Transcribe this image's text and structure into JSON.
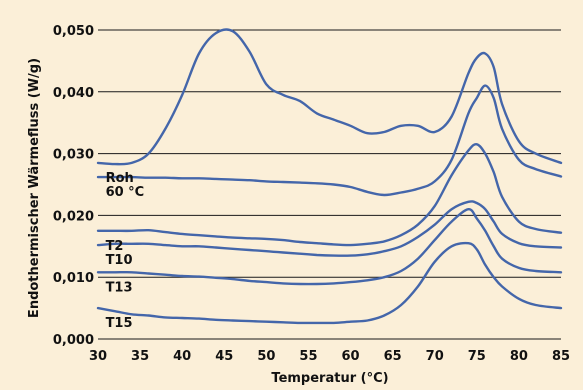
{
  "chart_data": {
    "type": "line",
    "xlabel": "Temperatur (°C)",
    "ylabel": "Endothermischer Wärmefluss (W/g)",
    "xlim": [
      30,
      85
    ],
    "ylim": [
      0.0,
      0.05
    ],
    "x_ticks": [
      "30",
      "35",
      "40",
      "45",
      "50",
      "55",
      "60",
      "65",
      "70",
      "75",
      "80",
      "85"
    ],
    "y_ticks": [
      "0,000",
      "0,010",
      "0,020",
      "0,030",
      "0,040",
      "0,050"
    ],
    "grid": "horizontal",
    "x": [
      30,
      32,
      34,
      36,
      38,
      40,
      42,
      44,
      46,
      48,
      50,
      52,
      54,
      56,
      58,
      60,
      62,
      64,
      66,
      68,
      70,
      72,
      74,
      75,
      76,
      77,
      78,
      80,
      82,
      85
    ],
    "series": [
      {
        "name": "Roh",
        "values": [
          0.0285,
          0.0283,
          0.0285,
          0.03,
          0.034,
          0.0395,
          0.0462,
          0.0495,
          0.0498,
          0.0465,
          0.0412,
          0.0395,
          0.0385,
          0.0365,
          0.0355,
          0.0345,
          0.0333,
          0.0335,
          0.0345,
          0.0345,
          0.0335,
          0.036,
          0.043,
          0.0455,
          0.0462,
          0.044,
          0.038,
          0.032,
          0.03,
          0.0285
        ]
      },
      {
        "name": "60 °C",
        "values": [
          0.0262,
          0.0262,
          0.0262,
          0.0261,
          0.0261,
          0.026,
          0.026,
          0.0259,
          0.0258,
          0.0257,
          0.0255,
          0.0254,
          0.0253,
          0.0252,
          0.025,
          0.0246,
          0.0238,
          0.0233,
          0.0237,
          0.0243,
          0.0255,
          0.029,
          0.0365,
          0.039,
          0.041,
          0.039,
          0.034,
          0.029,
          0.0275,
          0.0263
        ]
      },
      {
        "name": "T2",
        "values": [
          0.0175,
          0.0175,
          0.0175,
          0.0176,
          0.0173,
          0.017,
          0.0168,
          0.0166,
          0.0164,
          0.0163,
          0.0162,
          0.016,
          0.0157,
          0.0155,
          0.0153,
          0.0152,
          0.0154,
          0.0158,
          0.0168,
          0.0185,
          0.0215,
          0.0265,
          0.0305,
          0.0315,
          0.03,
          0.027,
          0.023,
          0.019,
          0.0178,
          0.0172
        ]
      },
      {
        "name": "T10",
        "values": [
          0.0152,
          0.0154,
          0.0154,
          0.0154,
          0.0152,
          0.015,
          0.015,
          0.0148,
          0.0146,
          0.0144,
          0.0142,
          0.014,
          0.0138,
          0.0136,
          0.0135,
          0.0135,
          0.0137,
          0.0142,
          0.015,
          0.0165,
          0.0185,
          0.021,
          0.0222,
          0.022,
          0.021,
          0.019,
          0.017,
          0.0155,
          0.015,
          0.0148
        ]
      },
      {
        "name": "T13",
        "values": [
          0.0108,
          0.0108,
          0.0108,
          0.0106,
          0.0104,
          0.0102,
          0.0101,
          0.0099,
          0.0097,
          0.0094,
          0.0092,
          0.009,
          0.0089,
          0.0089,
          0.009,
          0.0092,
          0.0095,
          0.01,
          0.011,
          0.013,
          0.016,
          0.019,
          0.021,
          0.0195,
          0.0175,
          0.015,
          0.013,
          0.0115,
          0.011,
          0.0108
        ]
      },
      {
        "name": "T15",
        "values": [
          0.005,
          0.0045,
          0.004,
          0.0038,
          0.0035,
          0.0034,
          0.0033,
          0.0031,
          0.003,
          0.0029,
          0.0028,
          0.0027,
          0.0026,
          0.0026,
          0.0026,
          0.0028,
          0.003,
          0.0038,
          0.0055,
          0.0085,
          0.0125,
          0.015,
          0.0155,
          0.0145,
          0.012,
          0.01,
          0.0085,
          0.0065,
          0.0055,
          0.005
        ]
      }
    ]
  }
}
